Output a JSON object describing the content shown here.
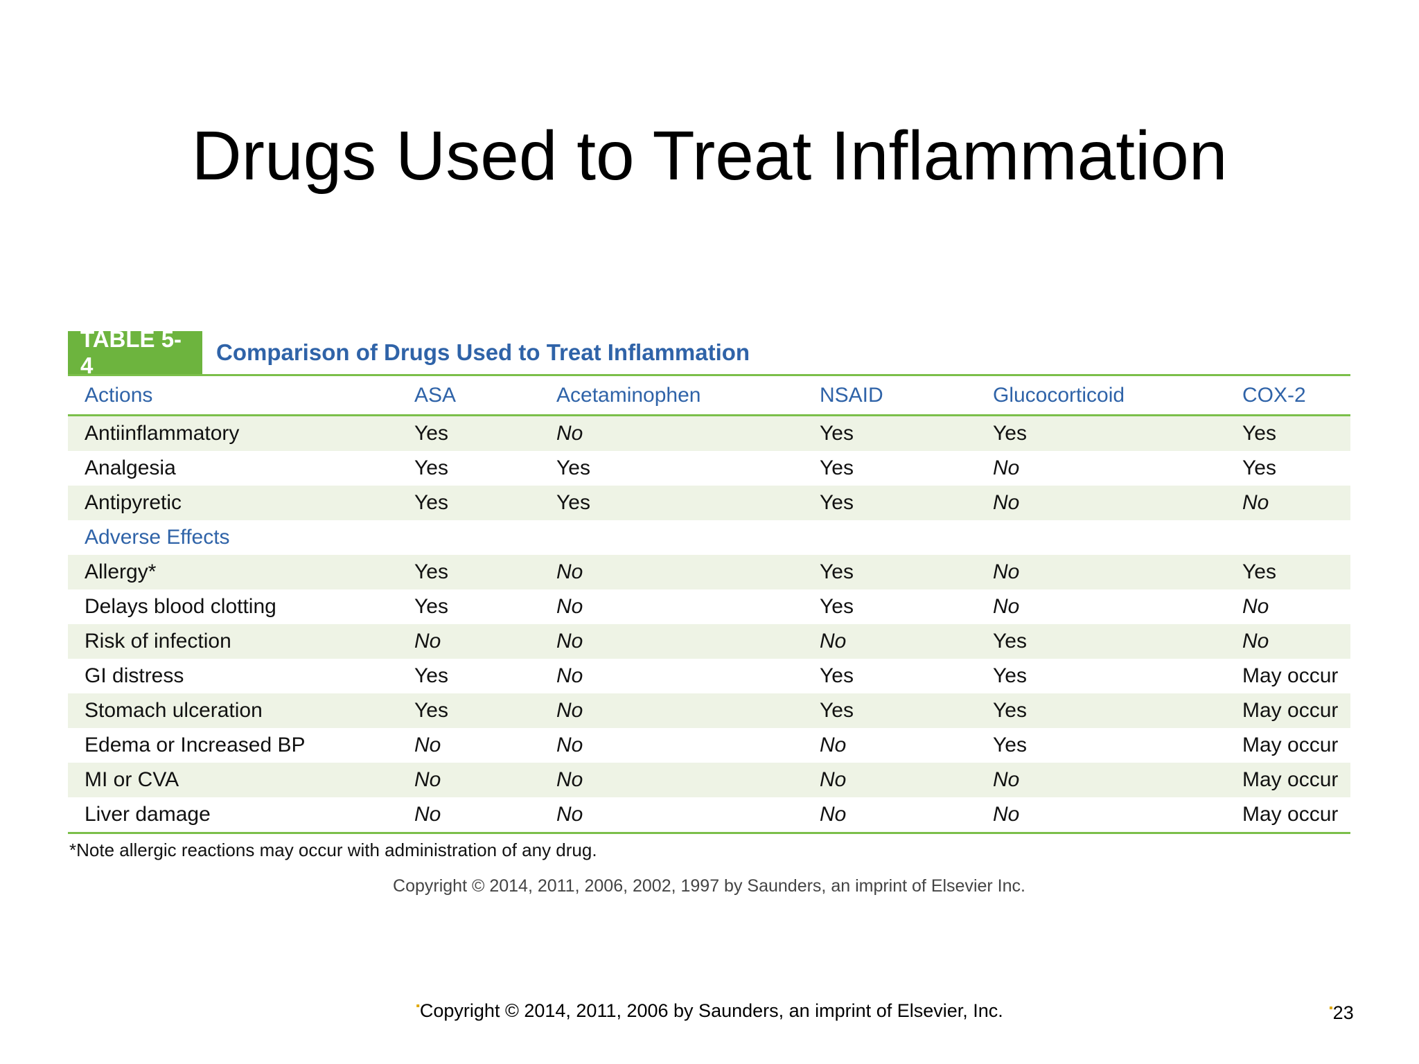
{
  "slide": {
    "title": "Drugs Used to Treat Inflammation",
    "footer": "Copyright © 2014, 2011, 2006 by Saunders, an imprint of Elsevier, Inc.",
    "page_number": "23"
  },
  "table": {
    "tag": "TABLE 5-4",
    "caption": "Comparison of Drugs Used to Treat Inflammation",
    "columns": [
      "Actions",
      "ASA",
      "Acetaminophen",
      "NSAID",
      "Glucocorticoid",
      "COX-2"
    ],
    "rows": [
      [
        "Antiinflammatory",
        "Yes",
        "No",
        "Yes",
        "Yes",
        "Yes"
      ],
      [
        "Analgesia",
        "Yes",
        "Yes",
        "Yes",
        "No",
        "Yes"
      ],
      [
        "Antipyretic",
        "Yes",
        "Yes",
        "Yes",
        "No",
        "No"
      ],
      [
        "Adverse Effects",
        "",
        "",
        "",
        "",
        ""
      ],
      [
        "Allergy*",
        "Yes",
        "No",
        "Yes",
        "No",
        "Yes"
      ],
      [
        "Delays blood clotting",
        "Yes",
        "No",
        "Yes",
        "No",
        "No"
      ],
      [
        "Risk of infection",
        "No",
        "No",
        "No",
        "Yes",
        "No"
      ],
      [
        "GI distress",
        "Yes",
        "No",
        "Yes",
        "Yes",
        "May occur"
      ],
      [
        "Stomach ulceration",
        "Yes",
        "No",
        "Yes",
        "Yes",
        "May occur"
      ],
      [
        "Edema or Increased BP",
        "No",
        "No",
        "No",
        "Yes",
        "May occur"
      ],
      [
        "MI or CVA",
        "No",
        "No",
        "No",
        "No",
        "May occur"
      ],
      [
        "Liver damage",
        "No",
        "No",
        "No",
        "No",
        "May occur"
      ]
    ],
    "note": "*Note allergic reactions may occur with administration of any drug.",
    "copyright": "Copyright © 2014, 2011, 2006, 2002, 1997 by Saunders, an imprint of Elsevier Inc."
  },
  "colors": {
    "accent_green": "#6db43e",
    "heading_blue": "#2f63a8",
    "stripe": "#eef3e5",
    "bullet": "#e0a800"
  }
}
